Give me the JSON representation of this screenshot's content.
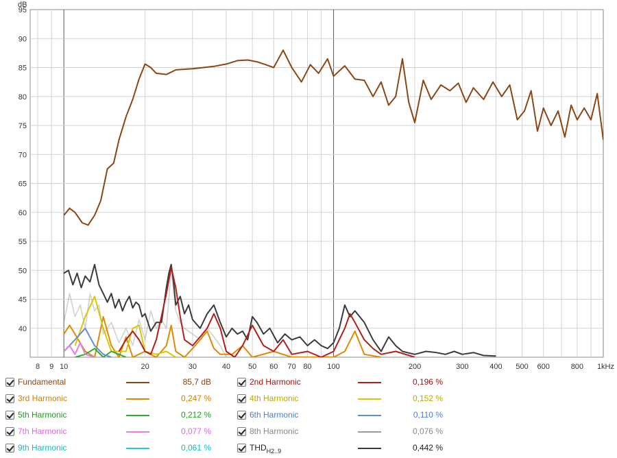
{
  "chart_data": {
    "type": "line",
    "xscale": "log",
    "ylabel": "dB",
    "xlim": [
      7.5,
      1000
    ],
    "ylim": [
      35,
      95
    ],
    "grid": true,
    "legend_position": "bottom",
    "yticks": [
      40,
      45,
      50,
      55,
      60,
      65,
      70,
      75,
      80,
      85,
      90,
      95
    ],
    "xticks": [
      {
        "value": 8,
        "label": "8"
      },
      {
        "value": 9,
        "label": "9"
      },
      {
        "value": 10,
        "label": "10"
      },
      {
        "value": 20,
        "label": "20"
      },
      {
        "value": 30,
        "label": "30"
      },
      {
        "value": 40,
        "label": "40"
      },
      {
        "value": 50,
        "label": "50"
      },
      {
        "value": 60,
        "label": "60"
      },
      {
        "value": 70,
        "label": "70"
      },
      {
        "value": 80,
        "label": "80"
      },
      {
        "value": 100,
        "label": "100"
      },
      {
        "value": 200,
        "label": "200"
      },
      {
        "value": 300,
        "label": "300"
      },
      {
        "value": 400,
        "label": "400"
      },
      {
        "value": 500,
        "label": "500"
      },
      {
        "value": 600,
        "label": "600"
      },
      {
        "value": 800,
        "label": "800"
      },
      {
        "value": 1000,
        "label": "1kHz"
      }
    ],
    "series": [
      {
        "name": "Fundamental",
        "color": "#8b4513",
        "x": [
          10,
          10.5,
          11,
          11.7,
          12.3,
          13,
          13.7,
          14.5,
          15.3,
          16,
          17,
          18,
          19,
          20,
          21,
          22,
          24,
          26,
          28,
          30,
          33,
          36,
          40,
          44,
          48,
          52,
          56,
          60,
          65,
          70,
          76,
          82,
          88,
          95,
          100,
          110,
          120,
          130,
          140,
          150,
          160,
          170,
          180,
          190,
          200,
          215,
          230,
          250,
          270,
          290,
          310,
          330,
          360,
          390,
          420,
          450,
          480,
          510,
          540,
          570,
          600,
          640,
          680,
          720,
          760,
          800,
          850,
          900,
          950,
          1000
        ],
        "y": [
          59.5,
          60.7,
          60,
          58.2,
          57.8,
          59.5,
          62,
          67.5,
          68.5,
          72.5,
          76.5,
          79.5,
          83,
          85.6,
          85,
          84,
          83.8,
          84.6,
          84.7,
          84.8,
          85,
          85.2,
          85.6,
          86.2,
          86.3,
          86,
          85.5,
          85,
          88,
          85,
          82.5,
          85.5,
          84,
          86.5,
          83.5,
          85.3,
          83,
          82.8,
          80,
          82.5,
          78.5,
          80,
          86.5,
          79,
          75.5,
          82.8,
          79.5,
          82,
          81,
          82.3,
          79,
          81.5,
          79.5,
          82.5,
          80,
          82,
          76,
          77.5,
          81,
          74,
          78,
          75,
          77.5,
          73,
          78.5,
          76,
          78,
          76,
          80.5,
          72.5
        ]
      },
      {
        "name": "2nd Harmonic",
        "color": "#b01e1e",
        "value": "0,196 %",
        "x": [
          16,
          17,
          18,
          19,
          20,
          21,
          22,
          23,
          24,
          25,
          26,
          27,
          28,
          30,
          32,
          34,
          36,
          38,
          40,
          43,
          46,
          50,
          55,
          60,
          65,
          70,
          80,
          90,
          100,
          110,
          115,
          120,
          130,
          140,
          150,
          170,
          200
        ],
        "y": [
          36,
          38,
          39.5,
          38,
          36,
          35.5,
          38,
          42,
          46,
          50.5,
          47,
          42,
          38,
          37,
          38.5,
          40,
          42.5,
          40,
          36,
          35,
          37,
          40.5,
          37,
          36,
          38,
          35.5,
          36,
          35,
          36,
          40,
          42.5,
          41,
          38,
          36.5,
          35.5,
          36,
          35
        ]
      },
      {
        "name": "3rd Harmonic",
        "color": "#dd8a00",
        "value": "0,247 %",
        "x": [
          10,
          10.5,
          11,
          12,
          13,
          14,
          15,
          16,
          17,
          18,
          20,
          22,
          24,
          25,
          26,
          28,
          30,
          32,
          34,
          36,
          38,
          42,
          46,
          50,
          60,
          70,
          80,
          100,
          110,
          120,
          130,
          150
        ],
        "y": [
          39,
          40.5,
          39,
          36,
          35,
          42,
          37,
          35,
          38.5,
          35,
          36,
          35,
          37,
          40.5,
          36,
          35,
          36.5,
          38,
          39.5,
          36.5,
          35.5,
          35.5,
          37,
          35,
          36,
          35,
          35,
          35,
          36,
          39.5,
          35.5,
          35
        ]
      },
      {
        "name": "4th Harmonic",
        "color": "#d8c800",
        "value": "0,152 %",
        "x": [
          11,
          12,
          13,
          14,
          15,
          17,
          18,
          19,
          20,
          22,
          24,
          26
        ],
        "y": [
          37,
          42,
          45.5,
          40,
          36,
          36,
          40,
          40.5,
          36,
          35.5,
          36,
          35
        ]
      },
      {
        "name": "5th Harmonic",
        "color": "#2eaa2e",
        "value": "0,212 %",
        "x": [
          11,
          12,
          13,
          14,
          15,
          16,
          17
        ],
        "y": [
          35,
          35.5,
          36.5,
          35,
          36,
          35.5,
          35
        ]
      },
      {
        "name": "6th Harmonic",
        "color": "#5e8fd6",
        "value": "0,110 %",
        "x": [
          10,
          11,
          12,
          13,
          14,
          15
        ],
        "y": [
          36,
          38,
          40,
          37,
          35.5,
          35
        ]
      },
      {
        "name": "7th Harmonic",
        "color": "#e47ce4",
        "value": "0,077 %",
        "x": [
          10,
          10.5,
          11,
          11.5,
          12,
          13
        ],
        "y": [
          36,
          37,
          35.5,
          37.5,
          35.5,
          35
        ]
      },
      {
        "name": "8th Harmonic",
        "color": "#9a9a9a",
        "value": "0,076 %",
        "x": [
          10,
          10.5,
          11,
          11.5,
          12,
          12.5,
          13,
          13.5,
          14,
          15,
          16,
          17,
          18,
          19,
          20,
          21,
          22,
          23,
          24,
          25,
          26,
          27,
          28,
          30,
          32,
          34,
          36,
          38,
          40
        ],
        "y": [
          41,
          46,
          42,
          44,
          40,
          46,
          43,
          44,
          39,
          41,
          37.5,
          40,
          37,
          41.5,
          38,
          43,
          40,
          41.5,
          40,
          50,
          43,
          41,
          40,
          39,
          38,
          40,
          38.5,
          37,
          35
        ]
      },
      {
        "name": "9th Harmonic",
        "color": "#22cfcf",
        "value": "0,061 %",
        "x": [],
        "y": []
      },
      {
        "name": "THD",
        "color": "#3a3a3a",
        "value": "0,442 %",
        "x": [
          10,
          10.4,
          10.8,
          11.2,
          11.6,
          12,
          12.5,
          13,
          13.5,
          14,
          14.5,
          15,
          15.5,
          16,
          16.5,
          17,
          17.5,
          18,
          18.5,
          19,
          19.5,
          20,
          21,
          22,
          23,
          24,
          24.5,
          25,
          25.5,
          26,
          27,
          28,
          29,
          30,
          32,
          34,
          36,
          38,
          40,
          42,
          44,
          46,
          48,
          50,
          52,
          55,
          58,
          62,
          66,
          70,
          75,
          80,
          85,
          90,
          95,
          100,
          105,
          110,
          115,
          120,
          130,
          140,
          150,
          160,
          170,
          180,
          200,
          220,
          240,
          260,
          280,
          300,
          330,
          360,
          400
        ],
        "y": [
          49.5,
          50,
          47.5,
          49.5,
          47,
          49,
          48,
          51,
          47.5,
          46,
          44.5,
          46,
          43.5,
          45,
          43,
          44.5,
          45.5,
          43.5,
          44.5,
          44,
          42,
          42.5,
          39.5,
          41,
          41,
          47,
          49.5,
          51,
          48,
          44,
          45.5,
          42.5,
          44,
          41.5,
          40,
          42.5,
          44,
          41,
          38.5,
          40,
          39,
          39.5,
          38,
          42,
          41,
          39,
          40,
          37.5,
          39,
          38,
          38.5,
          37,
          38,
          37,
          36.5,
          37.5,
          40,
          44,
          42,
          43,
          41,
          38,
          36,
          38.5,
          37,
          36,
          35.5,
          36,
          35.8,
          35.5,
          36,
          35.5,
          35.8,
          35.3,
          35.2
        ]
      }
    ]
  },
  "legend": [
    {
      "name": "Fundamental",
      "value": "85,7 dB",
      "color": "#8b4513",
      "text_color": "#8b4513"
    },
    {
      "name": "2nd Harmonic",
      "value": "0,196 %",
      "color": "#b01e1e",
      "text_color": "#9c1212"
    },
    {
      "name": "3rd Harmonic",
      "value": "0,247 %",
      "color": "#dd8a00",
      "text_color": "#d07f00"
    },
    {
      "name": "4th Harmonic",
      "value": "0,152 %",
      "color": "#d8c800",
      "text_color": "#b8a800"
    },
    {
      "name": "5th Harmonic",
      "value": "0,212 %",
      "color": "#2eaa2e",
      "text_color": "#1f9a1f"
    },
    {
      "name": "6th Harmonic",
      "value": "0,110 %",
      "color": "#5e8fd6",
      "text_color": "#4f7fcf"
    },
    {
      "name": "7th Harmonic",
      "value": "0,077 %",
      "color": "#e47ce4",
      "text_color": "#dd66dd"
    },
    {
      "name": "8th Harmonic",
      "value": "0,076 %",
      "color": "#9a9a9a",
      "text_color": "#888888"
    },
    {
      "name": "9th Harmonic",
      "value": "0,061 %",
      "color": "#22cfcf",
      "text_color": "#10bcbc"
    },
    {
      "name": "THD",
      "name_sub": "H2..9",
      "value": "0,442 %",
      "color": "#3a3a3a",
      "text_color": "#222222"
    }
  ]
}
